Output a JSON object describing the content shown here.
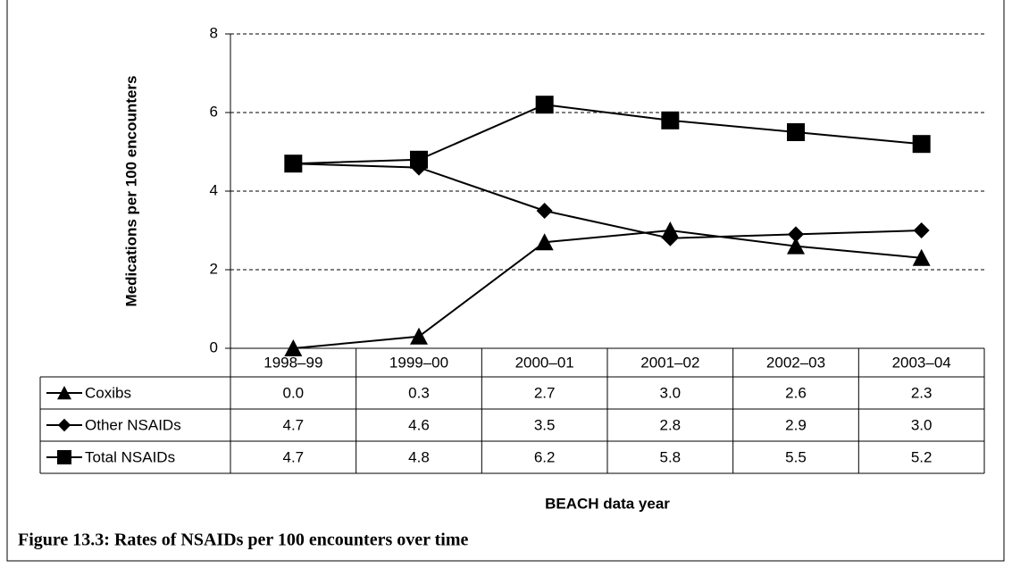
{
  "chart_data": {
    "type": "line",
    "caption": "Figure 13.3: Rates of NSAIDs per 100 encounters over time",
    "y_label": "Medications per 100 encounters",
    "x_label": "BEACH data year",
    "categories": [
      "1998–99",
      "1999–00",
      "2000–01",
      "2001–02",
      "2002–03",
      "2003–04"
    ],
    "series": [
      {
        "name": "Coxibs",
        "color": "#000000",
        "marker": "triangle",
        "values": [
          0,
          0.3,
          2.7,
          3,
          2.6,
          2.3
        ],
        "value_labels": [
          "0.0",
          "0.3",
          "2.7",
          "3.0",
          "2.6",
          "2.3"
        ]
      },
      {
        "name": "Other NSAIDs",
        "color": "#000000",
        "marker": "diamond",
        "values": [
          4.7,
          4.6,
          3.5,
          2.8,
          2.9,
          3
        ],
        "value_labels": [
          "4.7",
          "4.6",
          "3.5",
          "2.8",
          "2.9",
          "3.0"
        ]
      },
      {
        "name": "Total NSAIDs",
        "color": "#000000",
        "marker": "square",
        "values": [
          4.7,
          4.8,
          6.2,
          5.8,
          5.5,
          5.2
        ],
        "value_labels": [
          "4.7",
          "4.8",
          "6.2",
          "5.8",
          "5.5",
          "5.2"
        ]
      }
    ],
    "ylim": [
      0,
      8
    ],
    "yticks": [
      0,
      2,
      4,
      6,
      8
    ],
    "grid": true
  }
}
